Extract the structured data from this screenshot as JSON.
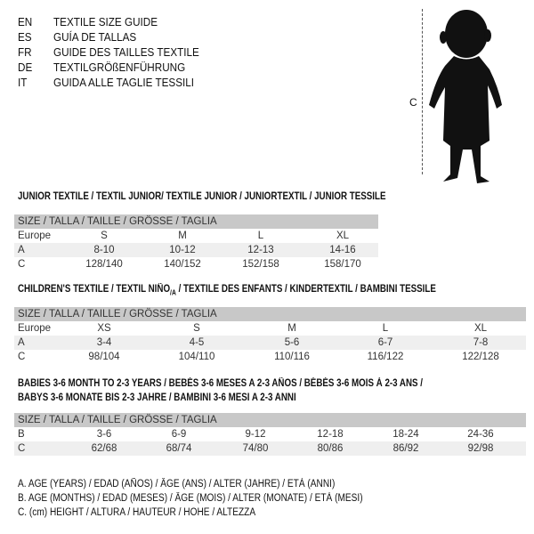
{
  "header": [
    {
      "code": "EN",
      "text": "TEXTILE SIZE GUIDE"
    },
    {
      "code": "ES",
      "text": "GUÍA DE TALLAS"
    },
    {
      "code": "FR",
      "text": "GUIDE DES TAILLES TEXTILE"
    },
    {
      "code": "DE",
      "text": "TEXTILGRÖßENFÜHRUNG"
    },
    {
      "code": "IT",
      "text": "GUIDA ALLE TAGLIE TESSILI"
    }
  ],
  "figure": {
    "label": "C",
    "icon": "child-silhouette"
  },
  "junior": {
    "title": "JUNIOR TEXTILE / TEXTIL JUNIOR/ TEXTILE JUNIOR / JUNIORTEXTIL / JUNIOR TESSILE",
    "header": "SIZE / TALLA / TAILLE / GRÖSSE / TAGLIA",
    "rows": [
      {
        "label": "Europe",
        "cells": [
          "S",
          "M",
          "L",
          "XL"
        ]
      },
      {
        "label": "A",
        "cells": [
          "8-10",
          "10-12",
          "12-13",
          "14-16"
        ]
      },
      {
        "label": "C",
        "cells": [
          "128/140",
          "140/152",
          "152/158",
          "158/170"
        ]
      }
    ]
  },
  "children": {
    "title_a": "CHILDREN'S TEXTILE / TEXTIL NIÑO",
    "title_sub": "/A",
    "title_b": " / TEXTILE DES ENFANTS / KINDERTEXTIL / BAMBINI TESSILE",
    "header": "SIZE / TALLA / TAILLE / GRÖSSE / TAGLIA",
    "rows": [
      {
        "label": "Europe",
        "cells": [
          "XS",
          "S",
          "M",
          "L",
          "XL"
        ]
      },
      {
        "label": "A",
        "cells": [
          "3-4",
          "4-5",
          "5-6",
          "6-7",
          "7-8"
        ]
      },
      {
        "label": "C",
        "cells": [
          "98/104",
          "104/110",
          "110/116",
          "116/122",
          "122/128"
        ]
      }
    ]
  },
  "babies": {
    "title_1": "BABIES 3-6 MONTH TO 2-3 YEARS / BEBÉS 3-6 MESES A 2-3 AÑOS / BÉBÉS 3-6 MOIS À 2-3 ANS /",
    "title_2": "BABYS 3-6 MONATE BIS 2-3 JAHRE / BAMBINI 3-6 MESI A 2-3 ANNI",
    "header": "SIZE / TALLA / TAILLE / GRÖSSE / TAGLIA",
    "rows": [
      {
        "label": "B",
        "cells": [
          "3-6",
          "6-9",
          "9-12",
          "12-18",
          "18-24",
          "24-36"
        ]
      },
      {
        "label": "C",
        "cells": [
          "62/68",
          "68/74",
          "74/80",
          "80/86",
          "86/92",
          "92/98"
        ]
      }
    ]
  },
  "notes": [
    "A. AGE (YEARS) / EDAD (AÑOS) / ÂGE (ANS) / ALTER (JAHRE) / ETÀ (ANNI)",
    "B. AGE (MONTHS) / EDAD (MESES) / ÂGE (MOIS) / ALTER (MONATE) / ETÀ (MESI)",
    "C. (cm) HEIGHT / ALTURA / HAUTEUR / HÖHE / ALTEZZA"
  ]
}
